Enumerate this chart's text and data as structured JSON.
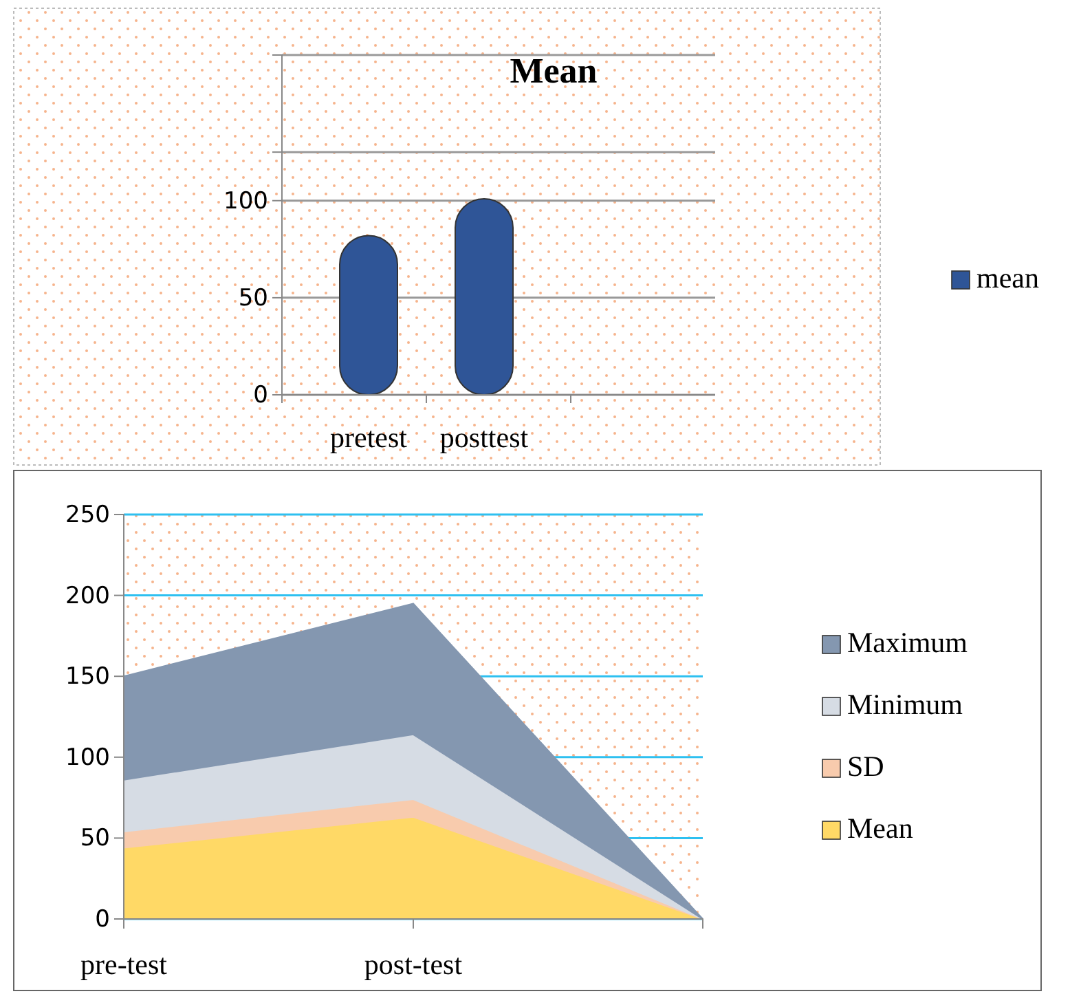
{
  "chart_data": [
    {
      "type": "bar",
      "title": "Mean",
      "categories": [
        "pretest",
        "posttest"
      ],
      "series": [
        {
          "name": "mean",
          "color": "#2f5597",
          "values": [
            82,
            101
          ]
        }
      ],
      "ylim": [
        0,
        175
      ],
      "yticks": [
        0,
        50,
        100,
        {
          "value": 125,
          "label": null
        },
        {
          "value": 175,
          "label": null
        }
      ],
      "grid": "y",
      "legend": "right"
    },
    {
      "type": "area",
      "stacked": true,
      "categories": [
        "pre-test",
        "post-test",
        null
      ],
      "series": [
        {
          "name": "Mean",
          "color": "#ffd966",
          "values": [
            44,
            63,
            0
          ]
        },
        {
          "name": "SD",
          "color": "#f8cbad",
          "values": [
            10,
            11,
            0
          ]
        },
        {
          "name": "Minimum",
          "color": "#d6dce4",
          "values": [
            32,
            40,
            0
          ]
        },
        {
          "name": "Maximum",
          "color": "#8497b0",
          "values": [
            64,
            81,
            0
          ]
        }
      ],
      "ylim": [
        0,
        250
      ],
      "yticks": [
        0,
        50,
        100,
        150,
        200,
        250
      ],
      "grid": "y",
      "legend": "right"
    }
  ]
}
